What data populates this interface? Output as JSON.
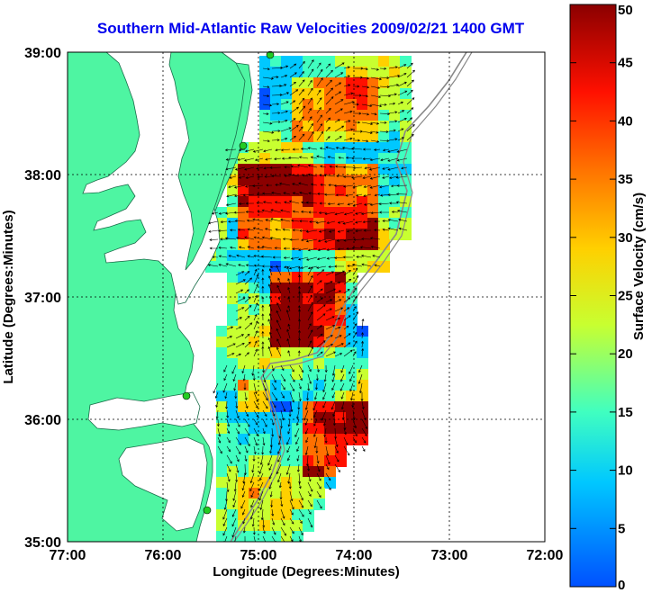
{
  "title": "Southern Mid-Atlantic Raw Velocities 2009/02/21 1400 GMT",
  "x_axis": {
    "label": "Longitude (Degrees:Minutes)",
    "ticks": [
      "77:00",
      "76:00",
      "75:00",
      "74:00",
      "73:00",
      "72:00"
    ],
    "range_deg_west": [
      77,
      72
    ]
  },
  "y_axis": {
    "label": "Latitude (Degrees:Minutes)",
    "ticks": [
      "39:00",
      "38:00",
      "37:00",
      "36:00",
      "35:00"
    ],
    "range_deg_north": [
      35,
      39
    ]
  },
  "colorbar": {
    "label": "Surface Velocity (cm/s)",
    "ticks": [
      "50",
      "45",
      "40",
      "35",
      "30",
      "25",
      "20",
      "15",
      "10",
      "5",
      "0"
    ],
    "range": [
      0,
      50
    ],
    "colors": [
      "#0050ff",
      "#00c8ff",
      "#40ffc0",
      "#c8ff30",
      "#ffd000",
      "#ff7000",
      "#ff1000",
      "#8b0000"
    ]
  },
  "colors": {
    "land": "#4ef5a2",
    "title": "#0000ee",
    "grid": "#000000",
    "arrows": "#000000",
    "station": "#22cc22"
  }
}
